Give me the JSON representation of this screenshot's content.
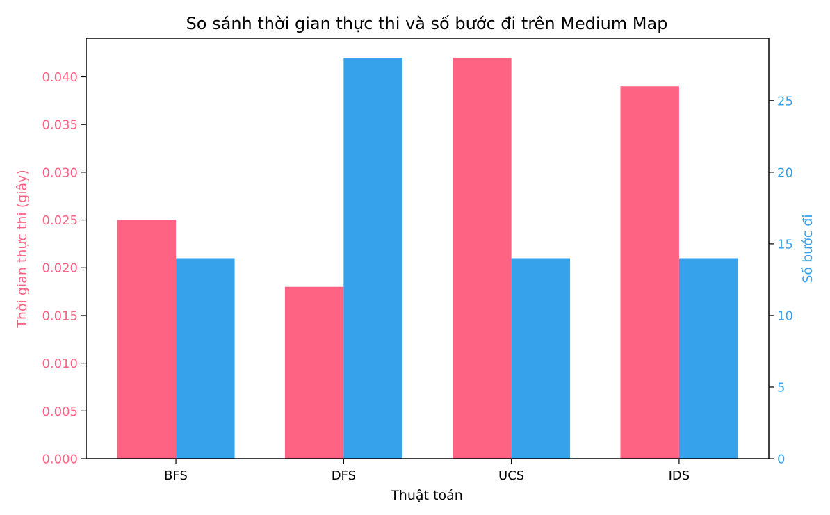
{
  "chart_data": {
    "type": "bar",
    "title": "So sánh thời gian thực thi và số bước đi trên Medium Map",
    "xlabel": "Thuật toán",
    "categories": [
      "BFS",
      "DFS",
      "UCS",
      "IDS"
    ],
    "series": [
      {
        "axis": "left",
        "values": [
          0.025,
          0.018,
          0.042,
          0.039
        ],
        "color": "#ff6384"
      },
      {
        "axis": "right",
        "values": [
          14,
          28,
          14,
          14
        ],
        "color": "#36a2eb"
      }
    ],
    "y_left": {
      "label": "Thời gian thực thi (giây)",
      "ylim": [
        0,
        0.04404
      ],
      "ticks": [
        "0.000",
        "0.005",
        "0.010",
        "0.015",
        "0.020",
        "0.025",
        "0.030",
        "0.035",
        "0.040"
      ],
      "color": "#ff6384"
    },
    "y_right": {
      "label": "Số bước đi",
      "ylim": [
        0,
        29.36
      ],
      "ticks": [
        "0",
        "5",
        "10",
        "15",
        "20",
        "25"
      ],
      "color": "#36a2eb"
    },
    "grid": false,
    "legend": "none"
  }
}
